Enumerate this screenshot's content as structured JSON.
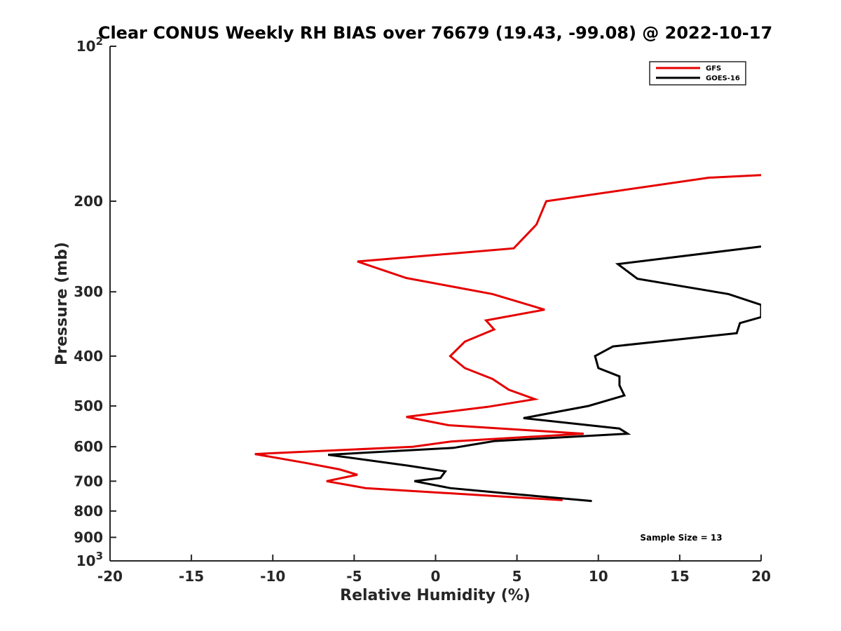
{
  "chart_data": {
    "type": "line",
    "title": "Clear CONUS Weekly RH BIAS over 76679 (19.43, -99.08) @ 2022-10-17",
    "xlabel": "Relative Humidity (%)",
    "ylabel": "Pressure (mb)",
    "xlim": [
      -20,
      20
    ],
    "ylim": [
      100,
      1000
    ],
    "y_scale": "log",
    "y_reversed": true,
    "grid": false,
    "legend_position": "top-right",
    "annotation": "Sample Size = 13",
    "x_ticks": [
      "-20",
      "-15",
      "-10",
      "-5",
      "0",
      "5",
      "10",
      "15",
      "20"
    ],
    "y_ticks": [
      {
        "value": 100,
        "base": "10",
        "exp": "2"
      },
      {
        "value": 200,
        "base": "200",
        "exp": ""
      },
      {
        "value": 300,
        "base": "300",
        "exp": ""
      },
      {
        "value": 400,
        "base": "400",
        "exp": ""
      },
      {
        "value": 500,
        "base": "500",
        "exp": ""
      },
      {
        "value": 600,
        "base": "600",
        "exp": ""
      },
      {
        "value": 700,
        "base": "700",
        "exp": ""
      },
      {
        "value": 800,
        "base": "800",
        "exp": ""
      },
      {
        "value": 900,
        "base": "900",
        "exp": ""
      },
      {
        "value": 1000,
        "base": "10",
        "exp": "3"
      }
    ],
    "series": [
      {
        "name": "GFS",
        "color": "#e60000",
        "points": [
          [
            20,
            178
          ],
          [
            16.8,
            180
          ],
          [
            6.8,
            200
          ],
          [
            6.2,
            222
          ],
          [
            4.8,
            247
          ],
          [
            -4.8,
            262
          ],
          [
            -1.8,
            282
          ],
          [
            3.5,
            303
          ],
          [
            6.7,
            325
          ],
          [
            3.1,
            341
          ],
          [
            3.6,
            355
          ],
          [
            1.8,
            375
          ],
          [
            0.9,
            400
          ],
          [
            1.8,
            422
          ],
          [
            3.5,
            443
          ],
          [
            4.5,
            465
          ],
          [
            6.1,
            485
          ],
          [
            3.2,
            502
          ],
          [
            -1.8,
            525
          ],
          [
            0.8,
            545
          ],
          [
            9.1,
            566
          ],
          [
            1.0,
            586
          ],
          [
            -1.4,
            600
          ],
          [
            -11.1,
            620
          ],
          [
            -8.0,
            645
          ],
          [
            -5.9,
            664
          ],
          [
            -4.8,
            680
          ],
          [
            -6.7,
            700
          ],
          [
            -4.3,
            722
          ],
          [
            7.8,
            762
          ]
        ]
      },
      {
        "name": "GOES-16",
        "color": "#000000",
        "points": [
          [
            20,
            245
          ],
          [
            11.2,
            265
          ],
          [
            12.4,
            283
          ],
          [
            18.0,
            303
          ],
          [
            20,
            318
          ],
          [
            20,
            336
          ],
          [
            18.7,
            345
          ],
          [
            18.5,
            361
          ],
          [
            10.9,
            383
          ],
          [
            9.8,
            400
          ],
          [
            10.0,
            422
          ],
          [
            11.3,
            438
          ],
          [
            11.3,
            456
          ],
          [
            11.6,
            477
          ],
          [
            9.4,
            500
          ],
          [
            5.4,
            528
          ],
          [
            11.3,
            553
          ],
          [
            11.8,
            566
          ],
          [
            3.6,
            585
          ],
          [
            1.1,
            603
          ],
          [
            -6.6,
            622
          ],
          [
            -1.7,
            653
          ],
          [
            0.6,
            670
          ],
          [
            0.3,
            690
          ],
          [
            -1.3,
            700
          ],
          [
            0.9,
            722
          ],
          [
            4.5,
            740
          ],
          [
            9.6,
            765
          ]
        ]
      }
    ]
  }
}
